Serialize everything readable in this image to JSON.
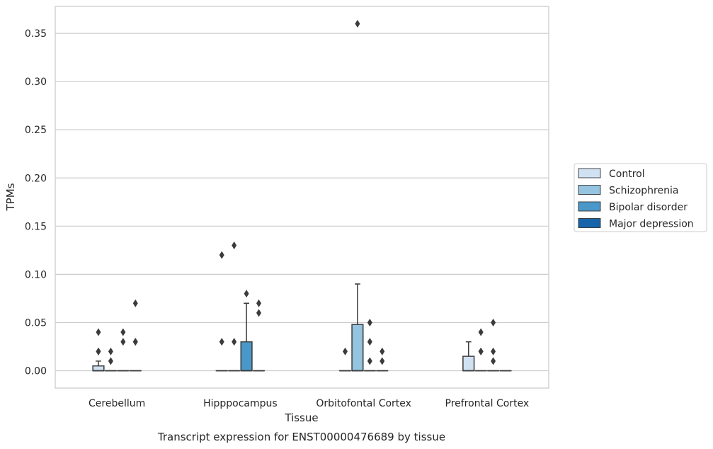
{
  "chart_data": {
    "type": "box",
    "title": "",
    "caption": "Transcript expression for ENST00000476689 by tissue",
    "xlabel": "Tissue",
    "ylabel": "TPMs",
    "ylim": [
      -0.018,
      0.378
    ],
    "yticks": [
      "0.00",
      "0.05",
      "0.10",
      "0.15",
      "0.20",
      "0.25",
      "0.30",
      "0.35"
    ],
    "grid": true,
    "legend_position": "right",
    "categories": [
      "Cerebellum",
      "Hipppocampus",
      "Orbitofontal Cortex",
      "Prefrontal Cortex"
    ],
    "series": [
      {
        "name": "Control",
        "color": "#d0e1f2",
        "boxes": [
          {
            "q1": 0,
            "median": 0,
            "q3": 0.005,
            "whisker_low": 0,
            "whisker_high": 0.01,
            "outliers": [
              0.02,
              0.02,
              0.04
            ]
          },
          {
            "q1": 0,
            "median": 0,
            "q3": 0,
            "whisker_low": 0,
            "whisker_high": 0,
            "outliers": [
              0.03,
              0.12
            ]
          },
          {
            "q1": 0,
            "median": 0,
            "q3": 0,
            "whisker_low": 0,
            "whisker_high": 0,
            "outliers": [
              0.02
            ]
          },
          {
            "q1": 0,
            "median": 0,
            "q3": 0.015,
            "whisker_low": 0,
            "whisker_high": 0.03,
            "outliers": []
          }
        ]
      },
      {
        "name": "Schizophrenia",
        "color": "#94c4df",
        "boxes": [
          {
            "q1": 0,
            "median": 0,
            "q3": 0,
            "whisker_low": 0,
            "whisker_high": 0,
            "outliers": [
              0.01,
              0.02
            ]
          },
          {
            "q1": 0,
            "median": 0,
            "q3": 0,
            "whisker_low": 0,
            "whisker_high": 0,
            "outliers": [
              0.03,
              0.13
            ]
          },
          {
            "q1": 0,
            "median": 0,
            "q3": 0.048,
            "whisker_low": 0,
            "whisker_high": 0.09,
            "outliers": [
              0.36
            ]
          },
          {
            "q1": 0,
            "median": 0,
            "q3": 0,
            "whisker_low": 0,
            "whisker_high": 0,
            "outliers": [
              0.02,
              0.02,
              0.04
            ]
          }
        ]
      },
      {
        "name": "Bipolar disorder",
        "color": "#4a98c9",
        "boxes": [
          {
            "q1": 0,
            "median": 0,
            "q3": 0,
            "whisker_low": 0,
            "whisker_high": 0,
            "outliers": [
              0.03,
              0.04
            ]
          },
          {
            "q1": 0,
            "median": 0,
            "q3": 0.03,
            "whisker_low": 0,
            "whisker_high": 0.07,
            "outliers": [
              0.08
            ]
          },
          {
            "q1": 0,
            "median": 0,
            "q3": 0,
            "whisker_low": 0,
            "whisker_high": 0,
            "outliers": [
              0.01,
              0.03,
              0.05
            ]
          },
          {
            "q1": 0,
            "median": 0,
            "q3": 0,
            "whisker_low": 0,
            "whisker_high": 0,
            "outliers": [
              0.01,
              0.02,
              0.05
            ]
          }
        ]
      },
      {
        "name": "Major depression",
        "color": "#1764ab",
        "boxes": [
          {
            "q1": 0,
            "median": 0,
            "q3": 0,
            "whisker_low": 0,
            "whisker_high": 0,
            "outliers": [
              0.03,
              0.03,
              0.07
            ]
          },
          {
            "q1": 0,
            "median": 0,
            "q3": 0,
            "whisker_low": 0,
            "whisker_high": 0,
            "outliers": [
              0.06,
              0.07
            ]
          },
          {
            "q1": 0,
            "median": 0,
            "q3": 0,
            "whisker_low": 0,
            "whisker_high": 0,
            "outliers": [
              0.01,
              0.02
            ]
          },
          {
            "q1": 0,
            "median": 0,
            "q3": 0,
            "whisker_low": 0,
            "whisker_high": 0,
            "outliers": []
          }
        ]
      }
    ]
  }
}
